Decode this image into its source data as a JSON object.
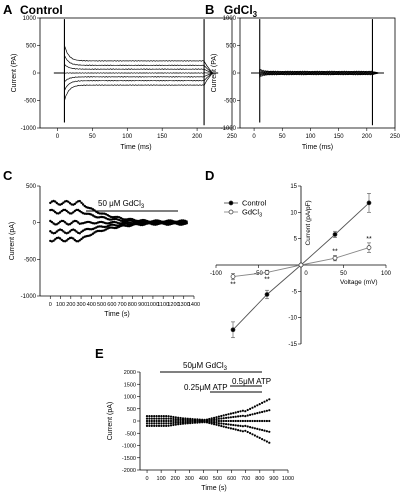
{
  "panels": {
    "A": {
      "letter": "A",
      "title": "Control"
    },
    "B": {
      "letter": "B",
      "title_main": "GdCl",
      "title_sub": "3"
    },
    "C": {
      "letter": "C",
      "annotation_main": "50 μM GdCl",
      "annotation_sub": "3"
    },
    "D": {
      "letter": "D"
    },
    "E": {
      "letter": "E",
      "ann_gd_main": "50μM GdCl",
      "ann_gd_sub": "3",
      "ann_atp1": "0.25μM ATP",
      "ann_atp2": "0.5μM ATP"
    }
  },
  "chart_data": [
    {
      "id": "A",
      "type": "line",
      "title": "Control",
      "xlabel": "Time (ms)",
      "ylabel": "Current (PA)",
      "xlim": [
        -25,
        250
      ],
      "ylim": [
        -1000,
        1000
      ],
      "xticks": [
        0,
        50,
        100,
        150,
        200,
        250
      ],
      "yticks": [
        -1000,
        -500,
        0,
        500,
        1000
      ],
      "pulse": [
        10,
        210
      ],
      "series_levels": [
        -220,
        -140,
        -70,
        0,
        70,
        140,
        220
      ]
    },
    {
      "id": "B",
      "type": "line",
      "title": "GdCl3",
      "xlabel": "Time (ms)",
      "ylabel": "Current (PA)",
      "xlim": [
        -25,
        250
      ],
      "ylim": [
        -1000,
        1000
      ],
      "xticks": [
        0,
        50,
        100,
        150,
        200,
        250
      ],
      "yticks": [
        -1000,
        -500,
        0,
        500,
        1000
      ],
      "pulse": [
        10,
        210
      ],
      "series_levels": [
        -30,
        -20,
        -10,
        0,
        10,
        20,
        30
      ]
    },
    {
      "id": "C",
      "type": "scatter",
      "xlabel": "Time (s)",
      "ylabel": "Current (pA)",
      "xlim": [
        -100,
        1400
      ],
      "ylim": [
        -1000,
        500
      ],
      "xticks": [
        0,
        100,
        200,
        300,
        400,
        500,
        600,
        700,
        800,
        900,
        1000,
        1100,
        1200,
        1300,
        1400
      ],
      "yticks": [
        -1000,
        -500,
        0,
        500
      ],
      "drug_start": 300,
      "drug_end": 1330,
      "initial_levels": [
        270,
        150,
        0,
        -120,
        -230
      ]
    },
    {
      "id": "D",
      "type": "line",
      "xlabel": "Voltage (mV)",
      "ylabel": "Current (pA/pF)",
      "xlim": [
        -100,
        100
      ],
      "ylim": [
        -15,
        15
      ],
      "xticks": [
        -100,
        -50,
        0,
        50,
        100
      ],
      "yticks": [
        -15,
        -10,
        -5,
        5,
        10,
        15
      ],
      "legend": [
        "Control",
        "GdCl3"
      ],
      "series": [
        {
          "name": "Control",
          "x": [
            -80,
            -40,
            0,
            40,
            80
          ],
          "y": [
            -12.3,
            -5.6,
            0,
            5.8,
            11.8
          ],
          "err": [
            1.5,
            0.8,
            0,
            0.6,
            1.8
          ]
        },
        {
          "name": "GdCl3",
          "x": [
            -80,
            -40,
            0,
            40,
            80
          ],
          "y": [
            -2.2,
            -1.4,
            0,
            1.3,
            3.3
          ],
          "err": [
            0.6,
            0.4,
            0,
            0.5,
            0.9
          ]
        }
      ],
      "significance": [
        {
          "x": -80,
          "label": "**"
        },
        {
          "x": -40,
          "label": "**"
        },
        {
          "x": 40,
          "label": "**"
        },
        {
          "x": 80,
          "label": "**"
        }
      ]
    },
    {
      "id": "E",
      "type": "scatter",
      "xlabel": "Time (s)",
      "ylabel": "Current (pA)",
      "xlim": [
        -50,
        1000
      ],
      "ylim": [
        -2000,
        2000
      ],
      "xticks": [
        0,
        100,
        200,
        300,
        400,
        500,
        600,
        700,
        800,
        900,
        1000
      ],
      "yticks": [
        -2000,
        -1500,
        -1000,
        -500,
        0,
        500,
        1000,
        1500,
        2000
      ],
      "gd_period": [
        150,
        900
      ],
      "atp1_period": [
        420,
        900
      ],
      "atp2_period": [
        680,
        900
      ],
      "initial_levels": [
        200,
        100,
        0,
        -100,
        -200
      ]
    }
  ]
}
